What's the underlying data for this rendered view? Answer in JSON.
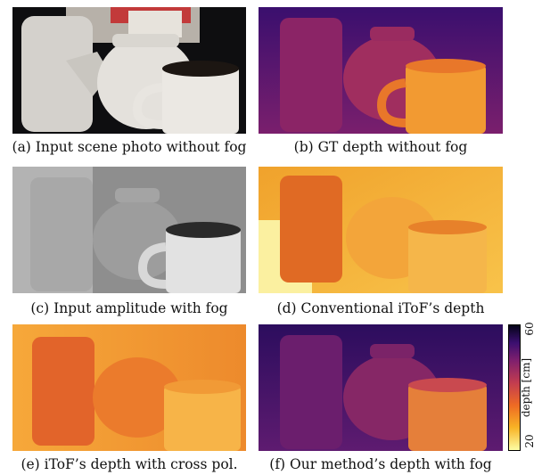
{
  "figure": {
    "panels": [
      {
        "id": "a",
        "caption": "(a) Input scene photo without fog",
        "content": "color photograph of a ceramic teapot, textured jar and mug"
      },
      {
        "id": "b",
        "caption": "(b) GT depth without fog",
        "content": "depth map, inferno colormap"
      },
      {
        "id": "c",
        "caption": "(c) Input amplitude with fog",
        "content": "grayscale amplitude image"
      },
      {
        "id": "d",
        "caption": "(d) Conventional iToF’s depth",
        "content": "depth map, inferno colormap"
      },
      {
        "id": "e",
        "caption": "(e) iToF’s depth with cross pol.",
        "content": "depth map, inferno colormap"
      },
      {
        "id": "f",
        "caption": "(f) Our method’s depth with fog",
        "content": "depth map, inferno colormap"
      }
    ],
    "colorbar": {
      "label": "depth [cm]",
      "min_label": "20",
      "max_label": "60",
      "colormap": "inferno"
    }
  }
}
